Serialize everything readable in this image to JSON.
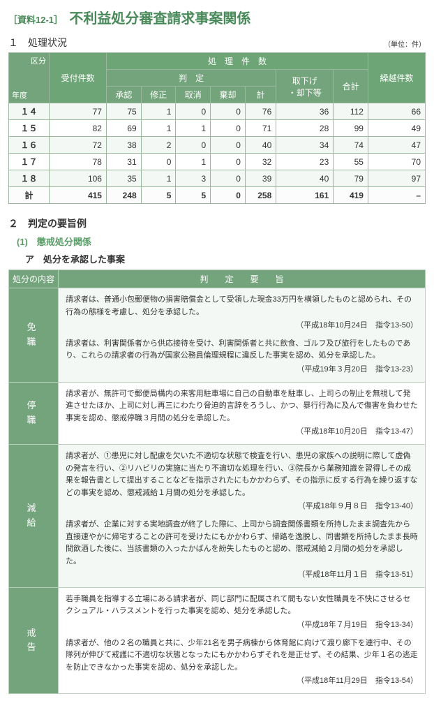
{
  "header": {
    "doc_id": "［資料12-1］",
    "title": "不利益処分審査請求事案関係"
  },
  "section1": {
    "number": "１　処理状況",
    "unit": "（単位：件）",
    "diag": {
      "top": "区分",
      "bottom": "年度"
    },
    "headers": {
      "uketuke": "受付件数",
      "shori": "処　理　件　数",
      "hantei": "判　定",
      "shounin": "承認",
      "shuusei": "修正",
      "torikeshi": "取消",
      "kikyaku": "棄却",
      "kei": "計",
      "torisage": "取下げ\n・却下等",
      "goukei": "合計",
      "kurikoshi": "繰越件数"
    },
    "rows": [
      {
        "year": "１４",
        "uketuke": 77,
        "shounin": 75,
        "shuusei": 1,
        "torikeshi": 0,
        "kikyaku": 0,
        "kei": 76,
        "torisage": 36,
        "goukei": 112,
        "kurikoshi": 66
      },
      {
        "year": "１５",
        "uketuke": 82,
        "shounin": 69,
        "shuusei": 1,
        "torikeshi": 1,
        "kikyaku": 0,
        "kei": 71,
        "torisage": 28,
        "goukei": 99,
        "kurikoshi": 49
      },
      {
        "year": "１６",
        "uketuke": 72,
        "shounin": 38,
        "shuusei": 2,
        "torikeshi": 0,
        "kikyaku": 0,
        "kei": 40,
        "torisage": 34,
        "goukei": 74,
        "kurikoshi": 47
      },
      {
        "year": "１７",
        "uketuke": 78,
        "shounin": 31,
        "shuusei": 0,
        "torikeshi": 1,
        "kikyaku": 0,
        "kei": 32,
        "torisage": 23,
        "goukei": 55,
        "kurikoshi": 70
      },
      {
        "year": "１８",
        "uketuke": 106,
        "shounin": 35,
        "shuusei": 1,
        "torikeshi": 3,
        "kikyaku": 0,
        "kei": 39,
        "torisage": 40,
        "goukei": 79,
        "kurikoshi": 97
      }
    ],
    "total": {
      "label": "計",
      "uketuke": 415,
      "shounin": 248,
      "shuusei": 5,
      "torikeshi": 5,
      "kikyaku": 0,
      "kei": 258,
      "torisage": 161,
      "goukei": 419,
      "kurikoshi": "–"
    }
  },
  "section2": {
    "number": "２　判定の要旨例",
    "sub_a": "(1)　懲戒処分関係",
    "sub_b": "ア　処分を承認した事案",
    "th_cat": "処分の内容",
    "th_summary": "判　　定　　要　　旨",
    "groups": [
      {
        "cat": "免　職",
        "entries": [
          {
            "text": "請求者は、普通小包郵便物の損害賠償金として受領した現金33万円を横領したものと認められ、その行為の態様を考慮し、処分を承認した。",
            "date": "（平成18年10月24日　指令13-50）"
          },
          {
            "text": "請求者は、利害関係者から供応接待を受け、利害関係者と共に飲食、ゴルフ及び旅行をしたものであり、これらの請求者の行為が国家公務員倫理規程に違反した事実を認め、処分を承認した。",
            "date": "（平成19年３月20日　指令13-23）"
          }
        ]
      },
      {
        "cat": "停　職",
        "entries": [
          {
            "text": "請求者が、無許可で郵便局構内の来客用駐車場に自己の自動車を駐車し、上司らの制止を無視して発進させたほか、上司に対し再三にわたり脅迫的言辞をろうし、かつ、暴行行為に及んで傷害を負わせた事実を認め、懲戒停職３月間の処分を承認した。",
            "date": "（平成18年10月20日　指令13-47）"
          }
        ]
      },
      {
        "cat": "減　給",
        "entries": [
          {
            "text": "請求者が、①患児に対し配慮を欠いた不適切な状態で検査を行い、患児の家族への説明に際して虚偽の発言を行い、②リハビリの実施に当たり不適切な処理を行い、③院長から業務知識を習得しその成果を報告書として提出することなどを指示されたにもかかわらず、その指示に反する行為を繰り返すなどの事実を認め、懲戒減給１月間の処分を承認した。",
            "date": "（平成18年９月８日　指令13-40）"
          },
          {
            "text": "請求者が、企業に対する実地調査が終了した際に、上司から調査関係書類を所持したまま調査先から直接速やかに帰宅することの許可を受けたにもかかわらず、帰路を逸脱し、同書類を所持したまま長時間飲酒した後に、当該書類の入ったかばんを紛失したものと認め、懲戒減給２月間の処分を承認した。",
            "date": "（平成18年11月１日　指令13-51）"
          }
        ]
      },
      {
        "cat": "戒　告",
        "entries": [
          {
            "text": "若手職員を指導する立場にある請求者が、同じ部門に配属されて間もない女性職員を不快にさせるセクシュアル・ハラスメントを行った事実を認め、処分を承認した。",
            "date": "（平成18年７月19日　指令13-34）"
          },
          {
            "text": "請求者が、他の２名の職員と共に、少年21名を男子病棟から体育館に向けて渡り廊下を連行中、その隊列が伸びて戒護に不適切な状態となったにもかかわらずそれを是正せず、その結果、少年１名の逃走を防止できなかった事実を認め、処分を承認した。",
            "date": "（平成18年11月29日　指令13-54）"
          }
        ]
      }
    ]
  }
}
